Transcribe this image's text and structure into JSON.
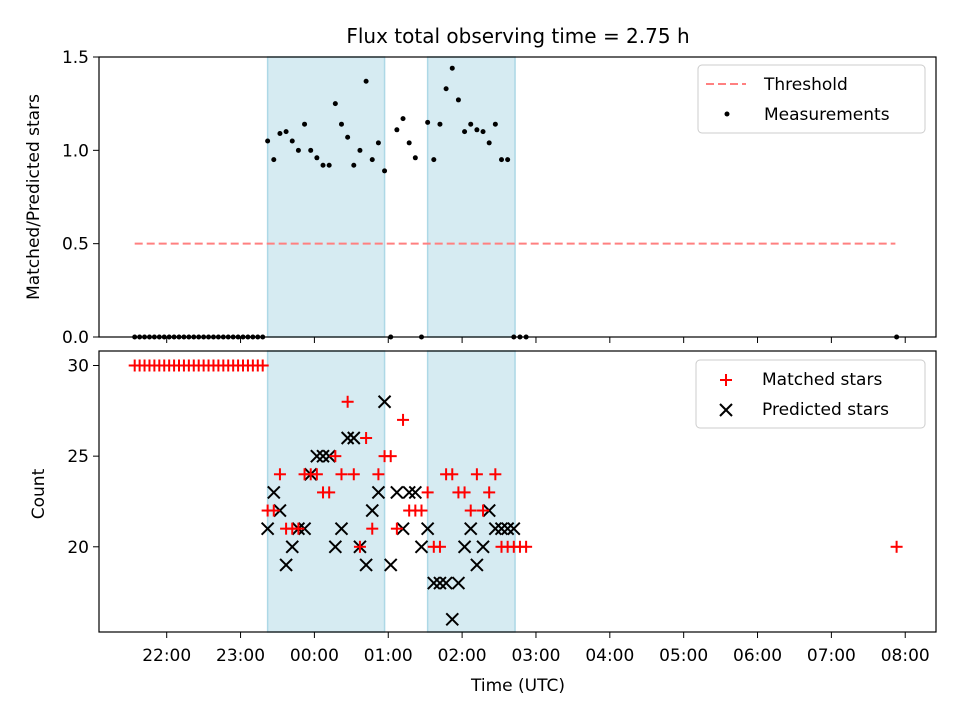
{
  "title": "Flux total observing time = 2.75 h",
  "top": {
    "ylabel": "Matched/Predicted stars",
    "legend": {
      "threshold": "Threshold",
      "measurements": "Measurements"
    }
  },
  "bottom": {
    "ylabel": "Count",
    "xlabel": "Time (UTC)",
    "legend": {
      "matched": "Matched stars",
      "predicted": "Predicted stars"
    }
  },
  "colors": {
    "threshold": "#ff8080",
    "measurement": "#000000",
    "matched": "#ff0000",
    "predicted": "#000000",
    "span": "#add8e6"
  },
  "chart_data": [
    {
      "type": "scatter",
      "title": "Flux total observing time = 2.75 h",
      "xlabel": "",
      "ylabel": "Matched/Predicted stars",
      "xlim": [
        "21:05",
        "08:25"
      ],
      "ylim": [
        0,
        1.5
      ],
      "y_ticks": [
        "0.0",
        "0.5",
        "1.0",
        "1.5"
      ],
      "shaded_intervals": [
        [
          "23:22",
          "00:57"
        ],
        [
          "01:32",
          "02:43"
        ]
      ],
      "threshold": {
        "name": "Threshold",
        "y": 0.5,
        "x_range": [
          "21:34",
          "07:52"
        ],
        "style": "dashed"
      },
      "series": [
        {
          "name": "Measurements",
          "x": [
            "21:34",
            "21:38",
            "21:42",
            "21:46",
            "21:50",
            "21:54",
            "21:58",
            "22:02",
            "22:06",
            "22:10",
            "22:14",
            "22:18",
            "22:22",
            "22:26",
            "22:30",
            "22:34",
            "22:38",
            "22:42",
            "22:46",
            "22:50",
            "22:54",
            "22:58",
            "23:02",
            "23:06",
            "23:10",
            "23:14",
            "23:18",
            "23:22",
            "23:27",
            "23:32",
            "23:37",
            "23:42",
            "23:47",
            "23:52",
            "23:57",
            "00:02",
            "00:07",
            "00:12",
            "00:17",
            "00:22",
            "00:27",
            "00:32",
            "00:37",
            "00:42",
            "00:47",
            "00:52",
            "00:57",
            "01:02",
            "01:07",
            "01:12",
            "01:17",
            "01:22",
            "01:27",
            "01:32",
            "01:37",
            "01:42",
            "01:47",
            "01:52",
            "01:57",
            "02:02",
            "02:07",
            "02:12",
            "02:17",
            "02:22",
            "02:27",
            "02:32",
            "02:37",
            "02:42",
            "02:47",
            "02:52",
            "07:53"
          ],
          "y": [
            0,
            0,
            0,
            0,
            0,
            0,
            0,
            0,
            0,
            0,
            0,
            0,
            0,
            0,
            0,
            0,
            0,
            0,
            0,
            0,
            0,
            0,
            0,
            0,
            0,
            0,
            0,
            1.05,
            0.95,
            1.09,
            1.1,
            1.05,
            1.0,
            1.14,
            1.0,
            0.96,
            0.92,
            0.92,
            1.25,
            1.14,
            1.07,
            0.92,
            1.0,
            1.37,
            0.95,
            1.04,
            0.89,
            0,
            1.11,
            1.17,
            1.04,
            0.96,
            0,
            1.15,
            0.95,
            1.14,
            1.33,
            1.44,
            1.27,
            1.1,
            1.14,
            1.11,
            1.1,
            1.04,
            1.14,
            0.95,
            0.95,
            0,
            0,
            0,
            0
          ]
        }
      ]
    },
    {
      "type": "scatter",
      "title": "",
      "xlabel": "Time (UTC)",
      "ylabel": "Count",
      "xlim": [
        "21:05",
        "08:25"
      ],
      "ylim": [
        15.3,
        30.8
      ],
      "y_ticks": [
        "20",
        "25",
        "30"
      ],
      "x_ticks": [
        "22:00",
        "23:00",
        "00:00",
        "01:00",
        "02:00",
        "03:00",
        "04:00",
        "05:00",
        "06:00",
        "07:00",
        "08:00"
      ],
      "shaded_intervals": [
        [
          "23:22",
          "00:57"
        ],
        [
          "01:32",
          "02:43"
        ]
      ],
      "series": [
        {
          "name": "Matched stars",
          "marker": "plus",
          "x": [
            "21:34",
            "21:38",
            "21:42",
            "21:46",
            "21:50",
            "21:54",
            "21:58",
            "22:02",
            "22:06",
            "22:10",
            "22:14",
            "22:18",
            "22:22",
            "22:26",
            "22:30",
            "22:34",
            "22:38",
            "22:42",
            "22:46",
            "22:50",
            "22:54",
            "22:58",
            "23:02",
            "23:06",
            "23:10",
            "23:14",
            "23:18",
            "23:22",
            "23:27",
            "23:32",
            "23:37",
            "23:42",
            "23:47",
            "23:52",
            "23:57",
            "00:02",
            "00:07",
            "00:12",
            "00:17",
            "00:22",
            "00:27",
            "00:32",
            "00:37",
            "00:42",
            "00:47",
            "00:52",
            "00:57",
            "01:02",
            "01:07",
            "01:12",
            "01:17",
            "01:22",
            "01:27",
            "01:32",
            "01:37",
            "01:42",
            "01:47",
            "01:52",
            "01:57",
            "02:02",
            "02:07",
            "02:12",
            "02:17",
            "02:22",
            "02:27",
            "02:32",
            "02:37",
            "02:42",
            "02:47",
            "02:52",
            "07:53"
          ],
          "y": [
            30,
            30,
            30,
            30,
            30,
            30,
            30,
            30,
            30,
            30,
            30,
            30,
            30,
            30,
            30,
            30,
            30,
            30,
            30,
            30,
            30,
            30,
            30,
            30,
            30,
            30,
            30,
            22,
            22,
            24,
            21,
            21,
            21,
            24,
            24,
            24,
            23,
            23,
            25,
            24,
            28,
            24,
            20,
            26,
            21,
            24,
            25,
            25,
            21,
            27,
            22,
            22,
            22,
            23,
            20,
            20,
            24,
            24,
            23,
            23,
            22,
            24,
            22,
            23,
            24,
            20,
            20,
            20,
            20,
            20,
            20
          ]
        },
        {
          "name": "Predicted stars",
          "marker": "x",
          "x": [
            "23:22",
            "23:27",
            "23:32",
            "23:37",
            "23:42",
            "23:47",
            "23:52",
            "23:57",
            "00:02",
            "00:07",
            "00:12",
            "00:17",
            "00:22",
            "00:27",
            "00:32",
            "00:37",
            "00:42",
            "00:47",
            "00:52",
            "00:57",
            "01:02",
            "01:07",
            "01:12",
            "01:17",
            "01:22",
            "01:27",
            "01:32",
            "01:37",
            "01:42",
            "01:47",
            "01:52",
            "01:57",
            "02:02",
            "02:07",
            "02:12",
            "02:17",
            "02:22",
            "02:27",
            "02:32",
            "02:37",
            "02:42"
          ],
          "y": [
            21,
            23,
            22,
            19,
            20,
            21,
            21,
            24,
            25,
            25,
            25,
            20,
            21,
            26,
            26,
            20,
            19,
            22,
            23,
            28,
            19,
            23,
            21,
            23,
            23,
            20,
            21,
            18,
            18,
            18,
            16,
            18,
            20,
            21,
            19,
            20,
            22,
            21,
            21,
            21,
            21
          ]
        }
      ]
    }
  ]
}
